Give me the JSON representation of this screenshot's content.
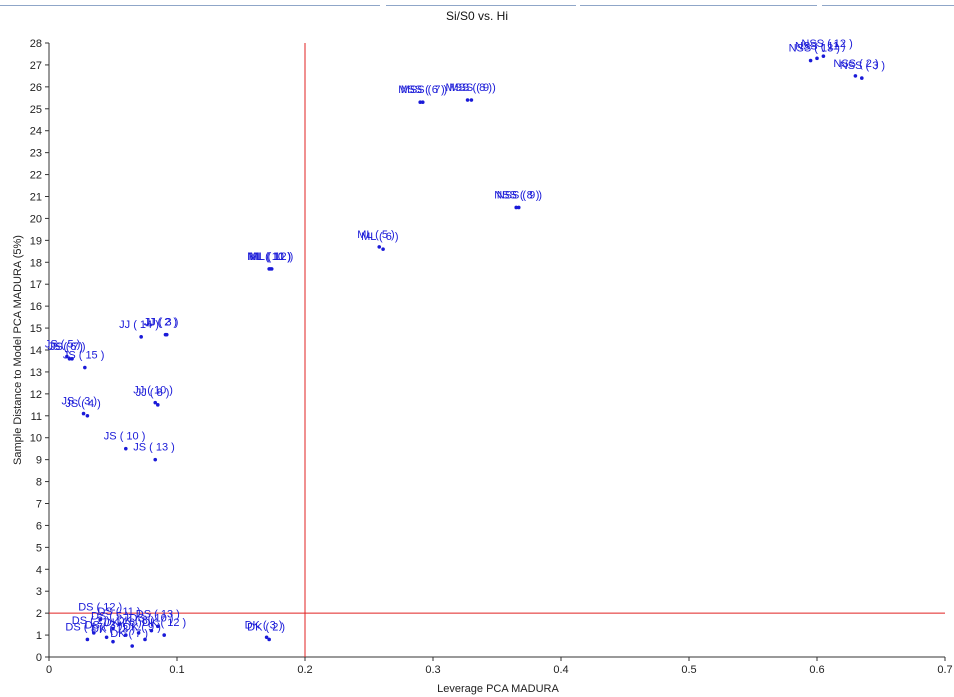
{
  "chart_data": {
    "type": "scatter",
    "title": "Si/S0 vs. Hi",
    "xlabel": "Leverage PCA MADURA",
    "ylabel": "Sample Distance to Model  PCA MADURA (5%)",
    "xlim": [
      0,
      0.7
    ],
    "ylim": [
      0,
      28
    ],
    "xticks": [
      0,
      0.1,
      0.2,
      0.3,
      0.4,
      0.5,
      0.6,
      0.7
    ],
    "xtick_labels": [
      "0",
      "0.1",
      "0.2",
      "0.3",
      "0.4",
      "0.5",
      "0.6",
      "0.7"
    ],
    "yticks": [
      0,
      1,
      2,
      3,
      4,
      5,
      6,
      7,
      8,
      9,
      10,
      11,
      12,
      13,
      14,
      15,
      16,
      17,
      18,
      19,
      20,
      21,
      22,
      23,
      24,
      25,
      26,
      27,
      28
    ],
    "point_color": "#1a1ad8",
    "limit_line_color": "#e02020",
    "limit_lines": {
      "x": 0.2,
      "y": 2.0
    },
    "points": [
      {
        "label": "NSS ( 11 )",
        "x": 0.6,
        "y": 27.3
      },
      {
        "label": "NSS ( 12 )",
        "x": 0.605,
        "y": 27.4
      },
      {
        "label": "NSS ( 13 )",
        "x": 0.595,
        "y": 27.2
      },
      {
        "label": "NSS ( 2 )",
        "x": 0.63,
        "y": 26.5
      },
      {
        "label": "NSS ( 3 )",
        "x": 0.635,
        "y": 26.4
      },
      {
        "label": "MSS ( 6 )",
        "x": 0.29,
        "y": 25.3
      },
      {
        "label": "MSS ( 7 )",
        "x": 0.292,
        "y": 25.3
      },
      {
        "label": "MSS ( 8 )",
        "x": 0.327,
        "y": 25.4
      },
      {
        "label": "MSS ( 9 )",
        "x": 0.33,
        "y": 25.4
      },
      {
        "label": "NSS ( 8 )",
        "x": 0.365,
        "y": 20.5
      },
      {
        "label": "NSS ( 9 )",
        "x": 0.367,
        "y": 20.5
      },
      {
        "label": "ML ( 10 )",
        "x": 0.172,
        "y": 17.7
      },
      {
        "label": "ML ( 11 )",
        "x": 0.173,
        "y": 17.7
      },
      {
        "label": "ML ( 12 )",
        "x": 0.174,
        "y": 17.7
      },
      {
        "label": "ML ( 5 )",
        "x": 0.258,
        "y": 18.7
      },
      {
        "label": "ML ( 6 )",
        "x": 0.261,
        "y": 18.6
      },
      {
        "label": "JJ ( 14 )",
        "x": 0.072,
        "y": 14.6
      },
      {
        "label": "JJ ( 2 )",
        "x": 0.091,
        "y": 14.7
      },
      {
        "label": "JJ ( 3 )",
        "x": 0.092,
        "y": 14.7
      },
      {
        "label": "JS ( 5 )",
        "x": 0.014,
        "y": 13.7
      },
      {
        "label": "JS ( 6 )",
        "x": 0.016,
        "y": 13.6
      },
      {
        "label": "JS ( 7 )",
        "x": 0.018,
        "y": 13.6
      },
      {
        "label": "JS ( 15 )",
        "x": 0.028,
        "y": 13.2
      },
      {
        "label": "JS ( 3 )",
        "x": 0.027,
        "y": 11.1
      },
      {
        "label": "JS ( 4 )",
        "x": 0.03,
        "y": 11.0
      },
      {
        "label": "JJ ( 8 )",
        "x": 0.085,
        "y": 11.5
      },
      {
        "label": "JJ ( 10 )",
        "x": 0.083,
        "y": 11.6
      },
      {
        "label": "JS ( 10 )",
        "x": 0.06,
        "y": 9.5
      },
      {
        "label": "JS ( 13 )",
        "x": 0.083,
        "y": 9.0
      },
      {
        "label": "DK ( 2 )",
        "x": 0.172,
        "y": 0.8
      },
      {
        "label": "DK ( 3 )",
        "x": 0.17,
        "y": 0.9
      },
      {
        "label": "DS ( 1 )",
        "x": 0.03,
        "y": 0.8
      },
      {
        "label": "DS ( 2 )",
        "x": 0.035,
        "y": 1.1
      },
      {
        "label": "DS ( 3 )",
        "x": 0.045,
        "y": 0.9
      },
      {
        "label": "DS ( 5 )",
        "x": 0.05,
        "y": 1.3
      },
      {
        "label": "DK ( 6 )",
        "x": 0.06,
        "y": 1.0
      },
      {
        "label": "DK ( 7 )",
        "x": 0.065,
        "y": 0.5
      },
      {
        "label": "DK ( 8 )",
        "x": 0.07,
        "y": 1.1
      },
      {
        "label": "DK ( 9 )",
        "x": 0.075,
        "y": 0.8
      },
      {
        "label": "DS ( 10 )",
        "x": 0.08,
        "y": 1.2
      },
      {
        "label": "DS ( 11 )",
        "x": 0.055,
        "y": 1.5
      },
      {
        "label": "DS ( 12 )",
        "x": 0.04,
        "y": 1.7
      },
      {
        "label": "DS ( 13 )",
        "x": 0.085,
        "y": 1.4
      },
      {
        "label": "DK ( 12 )",
        "x": 0.09,
        "y": 1.0
      },
      {
        "label": "DK ( 13 )",
        "x": 0.05,
        "y": 0.7
      }
    ]
  }
}
